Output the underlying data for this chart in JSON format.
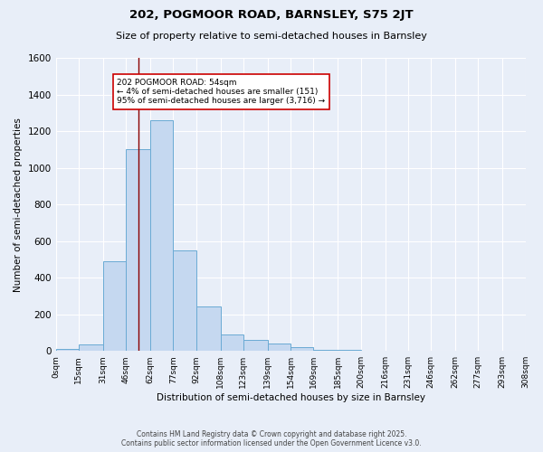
{
  "title_line1": "202, POGMOOR ROAD, BARNSLEY, S75 2JT",
  "title_line2": "Size of property relative to semi-detached houses in Barnsley",
  "xlabel": "Distribution of semi-detached houses by size in Barnsley",
  "ylabel": "Number of semi-detached properties",
  "bar_labels": [
    "0sqm",
    "15sqm",
    "31sqm",
    "46sqm",
    "62sqm",
    "77sqm",
    "92sqm",
    "108sqm",
    "123sqm",
    "139sqm",
    "154sqm",
    "169sqm",
    "185sqm",
    "200sqm",
    "216sqm",
    "231sqm",
    "246sqm",
    "262sqm",
    "277sqm",
    "293sqm",
    "308sqm"
  ],
  "bar_values": [
    10,
    35,
    490,
    1100,
    1260,
    550,
    245,
    90,
    60,
    42,
    20,
    8,
    5,
    3,
    1,
    0,
    0,
    0,
    0,
    0
  ],
  "bin_edges": [
    0,
    15,
    31,
    46,
    62,
    77,
    92,
    108,
    123,
    139,
    154,
    169,
    185,
    200,
    216,
    231,
    246,
    262,
    277,
    293,
    308
  ],
  "bar_color": "#c5d8f0",
  "bar_edge_color": "#6aaad4",
  "bg_color": "#e8eef8",
  "grid_color": "#ffffff",
  "vline_x": 54,
  "vline_color": "#8b0000",
  "ylim": [
    0,
    1600
  ],
  "yticks": [
    0,
    200,
    400,
    600,
    800,
    1000,
    1200,
    1400,
    1600
  ],
  "annotation_text": "202 POGMOOR ROAD: 54sqm\n← 4% of semi-detached houses are smaller (151)\n95% of semi-detached houses are larger (3,716) →",
  "footer_line1": "Contains HM Land Registry data © Crown copyright and database right 2025.",
  "footer_line2": "Contains public sector information licensed under the Open Government Licence v3.0."
}
